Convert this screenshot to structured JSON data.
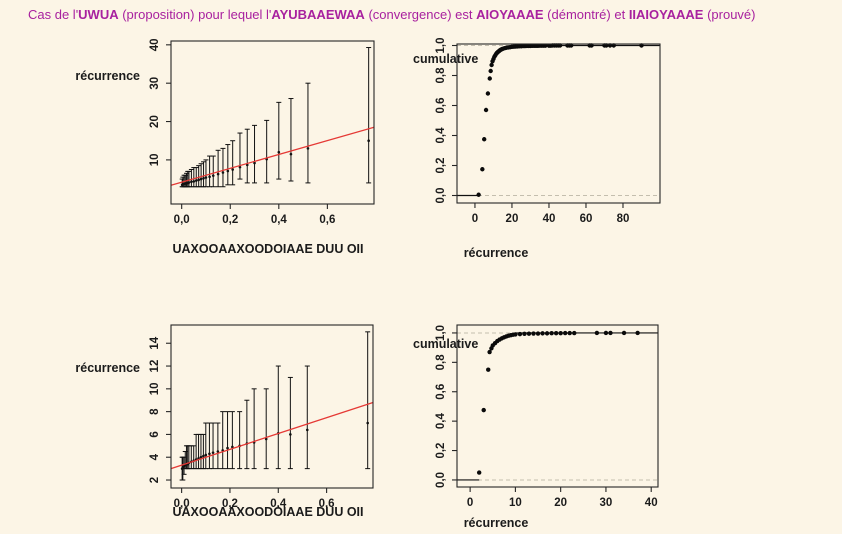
{
  "page": {
    "background": "#fcf5e6"
  },
  "title": {
    "color": "#a8219f",
    "segments": [
      {
        "text": "Cas de l'",
        "bold": false
      },
      {
        "text": "UWUA",
        "bold": true
      },
      {
        "text": " (proposition)  pour lequel l'",
        "bold": false
      },
      {
        "text": "AYUBAAEWAA",
        "bold": true
      },
      {
        "text": " (convergence) est ",
        "bold": false
      },
      {
        "text": "AIOYAAAE",
        "bold": true
      },
      {
        "text": " (démontré) et ",
        "bold": false
      },
      {
        "text": "IIAIOYAAAE",
        "bold": true
      },
      {
        "text": " (prouvé)",
        "bold": false
      }
    ]
  },
  "chart_data": [
    {
      "id": "top-left",
      "type": "errorbar-scatter",
      "xlabel": "UAXOOAAXOODOIAAE DUU OII",
      "ylabel": "récurrence",
      "xlim": [
        -0.044,
        0.792
      ],
      "ylim": [
        -1.5,
        41
      ],
      "grid": false,
      "y_tick_rotation": 90,
      "xticks": {
        "values": [
          0,
          0.2,
          0.4,
          0.6
        ],
        "labels": [
          "0,0",
          "0,2",
          "0,4",
          "0,6"
        ]
      },
      "yticks": {
        "values": [
          10,
          20,
          30,
          40
        ],
        "labels": [
          "10",
          "20",
          "30",
          "40"
        ]
      },
      "fit_line": {
        "x": [
          -0.044,
          0.792
        ],
        "y": [
          3.4,
          18.5
        ],
        "color": "#e53935"
      },
      "bar_color": "#111111",
      "bars": [
        [
          0.002,
          3.5,
          3,
          5
        ],
        [
          0.005,
          3.6,
          3,
          5.5
        ],
        [
          0.01,
          3.7,
          3,
          6
        ],
        [
          0.015,
          3.8,
          3,
          6
        ],
        [
          0.02,
          3.9,
          3,
          6.5
        ],
        [
          0.025,
          4.0,
          3,
          7
        ],
        [
          0.03,
          4.1,
          3,
          7
        ],
        [
          0.04,
          4.3,
          3,
          7.5
        ],
        [
          0.05,
          4.4,
          3,
          8
        ],
        [
          0.06,
          4.6,
          3,
          8
        ],
        [
          0.07,
          4.8,
          3,
          8.5
        ],
        [
          0.08,
          5.0,
          3,
          9
        ],
        [
          0.09,
          5.2,
          3,
          9.5
        ],
        [
          0.1,
          5.4,
          3,
          10
        ],
        [
          0.115,
          5.6,
          3,
          11
        ],
        [
          0.13,
          5.9,
          3,
          11
        ],
        [
          0.15,
          6.3,
          3,
          12.5
        ],
        [
          0.17,
          6.7,
          3,
          13
        ],
        [
          0.19,
          7.1,
          3.5,
          14
        ],
        [
          0.21,
          7.5,
          3.5,
          15
        ],
        [
          0.24,
          8.1,
          5,
          17
        ],
        [
          0.27,
          8.7,
          4,
          18
        ],
        [
          0.3,
          9.2,
          4,
          19
        ],
        [
          0.35,
          10.2,
          4,
          20.3
        ],
        [
          0.4,
          12,
          5,
          25
        ],
        [
          0.45,
          11.5,
          4.5,
          26
        ],
        [
          0.52,
          13,
          4,
          30
        ],
        [
          0.77,
          15,
          4,
          39.3
        ]
      ]
    },
    {
      "id": "top-right",
      "type": "scatter-cdf",
      "xlabel": "récurrence",
      "ylabel": "cumulative",
      "xlim": [
        -9.7,
        100
      ],
      "ylim": [
        -0.05,
        1.01
      ],
      "grid": false,
      "y_tick_rotation": 90,
      "xticks": {
        "values": [
          0,
          20,
          40,
          60,
          80
        ],
        "labels": [
          "0",
          "20",
          "40",
          "60",
          "80"
        ]
      },
      "yticks": {
        "values": [
          0,
          0.2,
          0.4,
          0.6,
          0.8,
          1.0
        ],
        "labels": [
          "0,0",
          "0,2",
          "0,4",
          "0,6",
          "0,8",
          "1,0"
        ]
      },
      "ref_lines": [
        {
          "y": 0,
          "style": "dashed",
          "color": "#c4beae"
        },
        {
          "y": 1,
          "style": "dashed",
          "color": "#c4beae"
        }
      ],
      "solid_segments": [
        {
          "y": 0,
          "x": [
            -9.7,
            2.2
          ]
        },
        {
          "y": 1,
          "x": [
            22,
            100
          ]
        }
      ],
      "point_color": "#0a0a0a",
      "points": [
        [
          2,
          0.005
        ],
        [
          4,
          0.175
        ],
        [
          5,
          0.375
        ],
        [
          6,
          0.57
        ],
        [
          7,
          0.68
        ],
        [
          8,
          0.78
        ],
        [
          8.5,
          0.83
        ],
        [
          9,
          0.87
        ],
        [
          9.5,
          0.895
        ],
        [
          10,
          0.91
        ],
        [
          10.5,
          0.925
        ],
        [
          11,
          0.935
        ],
        [
          11.5,
          0.945
        ],
        [
          12,
          0.952
        ],
        [
          12.5,
          0.958
        ],
        [
          13,
          0.963
        ],
        [
          13.5,
          0.968
        ],
        [
          14,
          0.972
        ],
        [
          14.5,
          0.975
        ],
        [
          15,
          0.978
        ],
        [
          16,
          0.982
        ],
        [
          17,
          0.985
        ],
        [
          18,
          0.987
        ],
        [
          19,
          0.989
        ],
        [
          20,
          0.991
        ],
        [
          21,
          0.992
        ],
        [
          22,
          0.993
        ],
        [
          23,
          0.994
        ],
        [
          24,
          0.995
        ],
        [
          25,
          0.995
        ],
        [
          26,
          0.996
        ],
        [
          27,
          0.996
        ],
        [
          28,
          0.997
        ],
        [
          29,
          0.997
        ],
        [
          30,
          0.997
        ],
        [
          31,
          0.998
        ],
        [
          32,
          0.998
        ],
        [
          33,
          0.998
        ],
        [
          34,
          0.998
        ],
        [
          35,
          0.999
        ],
        [
          36,
          0.999
        ],
        [
          37,
          0.999
        ],
        [
          38,
          0.999
        ],
        [
          40,
          0.999
        ],
        [
          41,
          0.999
        ],
        [
          42,
          1
        ],
        [
          43,
          1
        ],
        [
          44,
          1
        ],
        [
          45,
          1
        ],
        [
          46,
          1
        ],
        [
          50,
          1
        ],
        [
          51,
          1
        ],
        [
          52,
          1
        ],
        [
          62,
          1
        ],
        [
          63,
          1
        ],
        [
          70,
          1
        ],
        [
          71,
          1
        ],
        [
          73,
          1
        ],
        [
          75,
          1
        ],
        [
          90,
          1
        ]
      ]
    },
    {
      "id": "bottom-left",
      "type": "errorbar-scatter",
      "xlabel": "UAXOOAAXOODOIAAE DUU OII",
      "ylabel": "récurrence",
      "xlim": [
        -0.044,
        0.792
      ],
      "ylim": [
        1.3,
        15.6
      ],
      "grid": false,
      "y_tick_rotation": 90,
      "xticks": {
        "values": [
          0,
          0.2,
          0.4,
          0.6
        ],
        "labels": [
          "0,0",
          "0,2",
          "0,4",
          "0,6"
        ]
      },
      "yticks": {
        "values": [
          2,
          4,
          6,
          8,
          10,
          12,
          14
        ],
        "labels": [
          "2",
          "4",
          "6",
          "8",
          "10",
          "12",
          "14"
        ]
      },
      "fit_line": {
        "x": [
          -0.044,
          0.792
        ],
        "y": [
          3.0,
          8.8
        ],
        "color": "#e53935"
      },
      "bar_color": "#111111",
      "bars": [
        [
          0.002,
          3.0,
          2,
          4
        ],
        [
          0.005,
          3.1,
          2,
          4
        ],
        [
          0.01,
          3.2,
          2.5,
          4
        ],
        [
          0.015,
          3.3,
          3,
          4.5
        ],
        [
          0.02,
          3.4,
          3,
          5
        ],
        [
          0.025,
          3.4,
          3,
          5
        ],
        [
          0.03,
          3.5,
          3,
          5
        ],
        [
          0.04,
          3.6,
          3,
          5
        ],
        [
          0.05,
          3.7,
          3,
          5
        ],
        [
          0.06,
          3.8,
          3,
          6
        ],
        [
          0.07,
          3.9,
          3,
          6
        ],
        [
          0.08,
          4.0,
          3,
          6
        ],
        [
          0.09,
          4.1,
          3,
          6
        ],
        [
          0.1,
          4.2,
          3,
          7
        ],
        [
          0.115,
          4.3,
          3,
          7
        ],
        [
          0.13,
          4.4,
          3,
          7
        ],
        [
          0.15,
          4.5,
          3,
          7
        ],
        [
          0.17,
          4.6,
          3,
          8
        ],
        [
          0.19,
          4.8,
          3,
          8
        ],
        [
          0.21,
          4.9,
          3,
          8
        ],
        [
          0.24,
          5.0,
          3,
          8
        ],
        [
          0.27,
          5.2,
          3,
          9
        ],
        [
          0.3,
          5.3,
          3,
          10
        ],
        [
          0.35,
          5.6,
          3,
          10
        ],
        [
          0.4,
          6.1,
          3,
          12
        ],
        [
          0.45,
          6.0,
          3,
          11
        ],
        [
          0.52,
          6.4,
          3,
          12
        ],
        [
          0.77,
          7.0,
          3,
          15
        ]
      ]
    },
    {
      "id": "bottom-right",
      "type": "scatter-cdf",
      "xlabel": "récurrence",
      "ylabel": "cumulative",
      "xlim": [
        -2.9,
        41.5
      ],
      "ylim": [
        -0.048,
        1.054
      ],
      "grid": false,
      "y_tick_rotation": 90,
      "xticks": {
        "values": [
          0,
          10,
          20,
          30,
          40
        ],
        "labels": [
          "0",
          "10",
          "20",
          "30",
          "40"
        ]
      },
      "yticks": {
        "values": [
          0,
          0.2,
          0.4,
          0.6,
          0.8,
          1.0
        ],
        "labels": [
          "0,0",
          "0,2",
          "0,4",
          "0,6",
          "0,8",
          "1,0"
        ]
      },
      "ref_lines": [
        {
          "y": 0,
          "style": "dashed",
          "color": "#c4beae"
        },
        {
          "y": 1,
          "style": "dashed",
          "color": "#c4beae"
        }
      ],
      "solid_segments": [
        {
          "y": 0,
          "x": [
            -2.9,
            2
          ]
        },
        {
          "y": 1,
          "x": [
            10,
            41.5
          ]
        }
      ],
      "point_color": "#0a0a0a",
      "points": [
        [
          2,
          0.05
        ],
        [
          3,
          0.475
        ],
        [
          4,
          0.75
        ],
        [
          4.3,
          0.87
        ],
        [
          4.7,
          0.895
        ],
        [
          5,
          0.915
        ],
        [
          5.5,
          0.93
        ],
        [
          6,
          0.945
        ],
        [
          6.5,
          0.955
        ],
        [
          7,
          0.963
        ],
        [
          7.5,
          0.97
        ],
        [
          8,
          0.976
        ],
        [
          8.5,
          0.981
        ],
        [
          9,
          0.985
        ],
        [
          9.5,
          0.988
        ],
        [
          10,
          0.99
        ],
        [
          11,
          0.992
        ],
        [
          12,
          0.994
        ],
        [
          13,
          0.995
        ],
        [
          14,
          0.996
        ],
        [
          15,
          0.996
        ],
        [
          16,
          0.997
        ],
        [
          17,
          0.997
        ],
        [
          18,
          0.998
        ],
        [
          19,
          0.998
        ],
        [
          20,
          0.998
        ],
        [
          21,
          0.999
        ],
        [
          22,
          0.999
        ],
        [
          23,
          0.999
        ],
        [
          28,
          1
        ],
        [
          30,
          1
        ],
        [
          31,
          1
        ],
        [
          34,
          1
        ],
        [
          37,
          1
        ]
      ]
    }
  ]
}
